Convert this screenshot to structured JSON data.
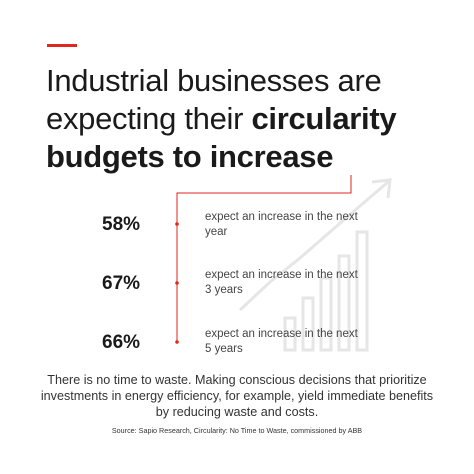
{
  "headline": {
    "line1": "Industrial businesses are",
    "line2_regular": "expecting their ",
    "line2_bold": "circularity",
    "line3_bold": "budgets to increase"
  },
  "stats": [
    {
      "value": "58%",
      "description": "expect an increase in the next year"
    },
    {
      "value": "67%",
      "description": "expect an increase in the next 3 years"
    },
    {
      "value": "66%",
      "description": "expect an increase in the next 5 years"
    }
  ],
  "body_text": "There is no time to waste. Making conscious decisions that prioritize investments in energy efficiency, for example, yield immediate benefits by reducing waste and costs.",
  "source": "Source: Sapio Research, Circularity: No Time to Waste, commissioned by ABB",
  "colors": {
    "accent": "#e1261c",
    "text": "#1a1a1a",
    "decoration": "#e6e6e6"
  },
  "decoration": "growth-chart-with-arrow-icon"
}
